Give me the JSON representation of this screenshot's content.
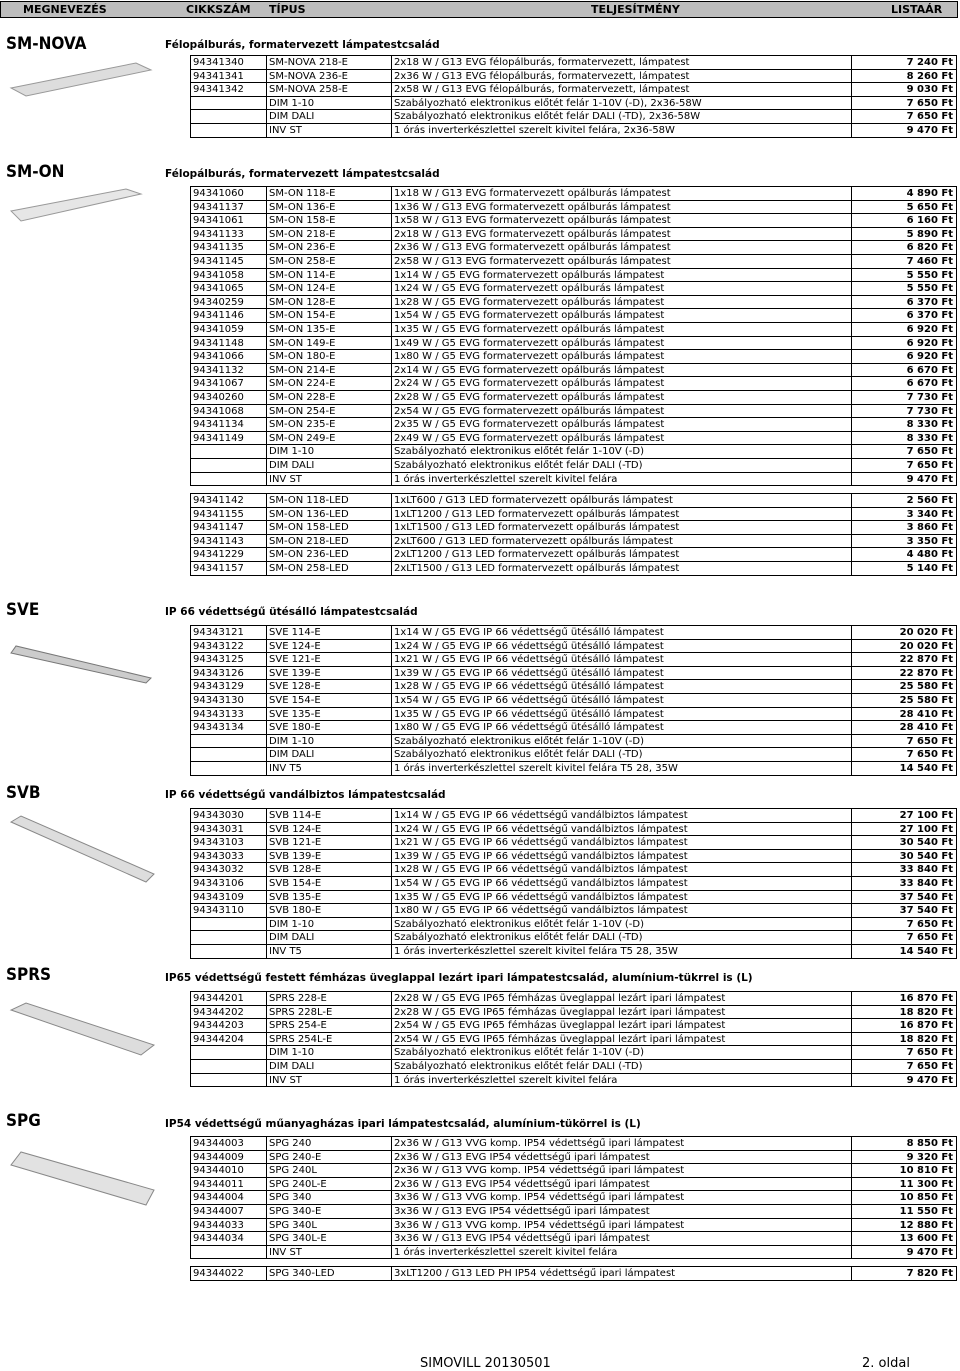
{
  "header": [
    "MEGNEVEZÉS",
    "CIKKSZÁM",
    "TÍPUS",
    "TELJESÍTMÉNY",
    "LISTAÁR"
  ],
  "footer": [
    "SIMOVILL 20130501",
    "2. oldal"
  ],
  "sections": [
    {
      "name": "SM-NOVA",
      "subtitle": "Félopálburás, formatervezett lámpatestcsalád",
      "groups": [
        [
          {
            "code": "94341340",
            "type": "SM-NOVA 218-E",
            "desc": "2x18 W / G13 EVG félopálburás, formatervezett, lámpatest",
            "price": "7 240 Ft"
          },
          {
            "code": "94341341",
            "type": "SM-NOVA 236-E",
            "desc": "2x36 W / G13 EVG félopálburás, formatervezett, lámpatest",
            "price": "8 260 Ft"
          },
          {
            "code": "94341342",
            "type": "SM-NOVA 258-E",
            "desc": "2x58 W / G13 EVG félopálburás, formatervezett, lámpatest",
            "price": "9 030 Ft"
          },
          {
            "type": "DIM 1-10",
            "desc": "Szabályozható elektronikus előtét felár 1-10V (-D), 2x36-58W",
            "price": "7 650 Ft"
          },
          {
            "type": "DIM DALI",
            "desc": "Szabályozható elektronikus előtét felár DALI (-TD), 2x36-58W",
            "price": "7 650 Ft"
          },
          {
            "type": "INV ST",
            "desc": "1 órás inverterkészlettel szerelt kivitel felára, 2x36-58W",
            "price": "9 470 Ft"
          }
        ]
      ]
    },
    {
      "name": "SM-ON",
      "subtitle": "Félopálburás, formatervezett lámpatestcsalád",
      "groups": [
        [
          {
            "code": "94341060",
            "type": "SM-ON 118-E",
            "desc": "1x18 W / G13 EVG  formatervezett opálburás lámpatest",
            "price": "4 890 Ft"
          },
          {
            "code": "94341137",
            "type": "SM-ON 136-E",
            "desc": "1x36 W / G13 EVG formatervezett opálburás lámpatest",
            "price": "5 650 Ft"
          },
          {
            "code": "94341061",
            "type": "SM-ON 158-E",
            "desc": "1x58 W / G13 EVG formatervezett opálburás lámpatest",
            "price": "6 160 Ft"
          },
          {
            "code": "94341133",
            "type": "SM-ON 218-E",
            "desc": "2x18 W / G13 EVG formatervezett opálburás lámpatest",
            "price": "5 890 Ft"
          },
          {
            "code": "94341135",
            "type": "SM-ON 236-E",
            "desc": "2x36 W / G13 EVG formatervezett opálburás lámpatest",
            "price": "6 820 Ft"
          },
          {
            "code": "94341145",
            "type": "SM-ON 258-E",
            "desc": "2x58 W / G13 EVG formatervezett opálburás lámpatest",
            "price": "7 460 Ft"
          },
          {
            "code": "94341058",
            "type": "SM-ON 114-E",
            "desc": "1x14 W / G5 EVG formatervezett opálburás lámpatest",
            "price": "5 550 Ft"
          },
          {
            "code": "94341065",
            "type": "SM-ON 124-E",
            "desc": "1x24 W / G5 EVG formatervezett opálburás lámpatest",
            "price": "5 550 Ft"
          },
          {
            "code": "94340259",
            "type": "SM-ON 128-E",
            "desc": "1x28 W / G5 EVG formatervezett opálburás lámpatest",
            "price": "6 370 Ft"
          },
          {
            "code": "94341146",
            "type": "SM-ON 154-E",
            "desc": "1x54 W / G5 EVG formatervezett opálburás lámpatest",
            "price": "6 370 Ft"
          },
          {
            "code": "94341059",
            "type": "SM-ON 135-E",
            "desc": "1x35 W / G5 EVG formatervezett opálburás lámpatest",
            "price": "6 920 Ft"
          },
          {
            "code": "94341148",
            "type": "SM-ON 149-E",
            "desc": "1x49 W / G5 EVG formatervezett opálburás lámpatest",
            "price": "6 920 Ft"
          },
          {
            "code": "94341066",
            "type": "SM-ON 180-E",
            "desc": "1x80 W / G5 EVG formatervezett opálburás lámpatest",
            "price": "6 920 Ft"
          },
          {
            "code": "94341132",
            "type": "SM-ON 214-E",
            "desc": "2x14 W / G5 EVG formatervezett opálburás lámpatest",
            "price": "6 670 Ft"
          },
          {
            "code": "94341067",
            "type": "SM-ON 224-E",
            "desc": "2x24 W / G5 EVG formatervezett opálburás lámpatest",
            "price": "6 670 Ft"
          },
          {
            "code": "94340260",
            "type": "SM-ON 228-E",
            "desc": "2x28 W / G5 EVG formatervezett opálburás lámpatest",
            "price": "7 730 Ft"
          },
          {
            "code": "94341068",
            "type": "SM-ON 254-E",
            "desc": "2x54 W / G5 EVG formatervezett opálburás lámpatest",
            "price": "7 730 Ft"
          },
          {
            "code": "94341134",
            "type": "SM-ON 235-E",
            "desc": "2x35 W / G5 EVG formatervezett opálburás lámpatest",
            "price": "8 330 Ft"
          },
          {
            "code": "94341149",
            "type": "SM-ON 249-E",
            "desc": "2x49 W / G5 EVG formatervezett opálburás lámpatest",
            "price": "8 330 Ft"
          },
          {
            "type": "DIM 1-10",
            "desc": "Szabályozható elektronikus előtét felár 1-10V (-D)",
            "price": "7 650 Ft"
          },
          {
            "type": "DIM DALI",
            "desc": "Szabályozható elektronikus előtét felár DALI (-TD)",
            "price": "7 650 Ft"
          },
          {
            "type": "INV ST",
            "desc": "1 órás inverterkészlettel szerelt kivitel felára",
            "price": "9 470 Ft"
          }
        ],
        [
          {
            "code": "94341142",
            "type": "SM-ON 118-LED",
            "desc": "1xLT600 / G13 LED formatervezett opálburás lámpatest",
            "price": "2 560 Ft"
          },
          {
            "code": "94341155",
            "type": "SM-ON 136-LED",
            "desc": "1xLT1200 / G13 LED formatervezett opálburás lámpatest",
            "price": "3 340 Ft"
          },
          {
            "code": "94341147",
            "type": "SM-ON 158-LED",
            "desc": "1xLT1500 / G13 LED formatervezett opálburás lámpatest",
            "price": "3 860 Ft"
          },
          {
            "code": "94341143",
            "type": "SM-ON 218-LED",
            "desc": "2xLT600 / G13 LED formatervezett opálburás lámpatest",
            "price": "3 350 Ft"
          },
          {
            "code": "94341229",
            "type": "SM-ON 236-LED",
            "desc": "2xLT1200 / G13 LED formatervezett opálburás lámpatest",
            "price": "4 480 Ft"
          },
          {
            "code": "94341157",
            "type": "SM-ON 258-LED",
            "desc": "2xLT1500 / G13 LED formatervezett opálburás lámpatest",
            "price": "5 140 Ft"
          }
        ]
      ]
    },
    {
      "name": "SVE",
      "subtitle": "IP 66 védettségű ütésálló lámpatestcsalád",
      "groups": [
        [
          {
            "code": "94343121",
            "type": "SVE 114-E",
            "desc": "1x14 W / G5 EVG IP 66 védettségű ütésálló lámpatest",
            "price": "20 020 Ft"
          },
          {
            "code": "94343122",
            "type": "SVE 124-E",
            "desc": "1x24 W / G5 EVG IP 66 védettségű ütésálló lámpatest",
            "price": "20 020 Ft"
          },
          {
            "code": "94343125",
            "type": "SVE 121-E",
            "desc": "1x21 W / G5 EVG IP 66 védettségű ütésálló lámpatest",
            "price": "22 870 Ft"
          },
          {
            "code": "94343126",
            "type": "SVE 139-E",
            "desc": "1x39 W / G5 EVG IP 66 védettségű ütésálló lámpatest",
            "price": "22 870 Ft"
          },
          {
            "code": "94343129",
            "type": "SVE 128-E",
            "desc": "1x28 W / G5 EVG IP 66 védettségű ütésálló lámpatest",
            "price": "25 580 Ft"
          },
          {
            "code": "94343130",
            "type": "SVE 154-E",
            "desc": "1x54 W / G5 EVG IP 66 védettségű ütésálló lámpatest",
            "price": "25 580 Ft"
          },
          {
            "code": "94343133",
            "type": "SVE 135-E",
            "desc": "1x35 W / G5 EVG IP 66 védettségű ütésálló lámpatest",
            "price": "28 410 Ft"
          },
          {
            "code": "94343134",
            "type": "SVE 180-E",
            "desc": "1x80 W / G5 EVG IP 66 védettségű ütésálló lámpatest",
            "price": "28 410 Ft"
          },
          {
            "type": "DIM 1-10",
            "desc": "Szabályozható elektronikus előtét felár 1-10V (-D)",
            "price": "7 650 Ft"
          },
          {
            "type": "DIM DALI",
            "desc": "Szabályozható elektronikus előtét felár DALI (-TD)",
            "price": "7 650 Ft"
          },
          {
            "type": "INV T5",
            "desc": "1 órás inverterkészlettel szerelt kivitel felára T5 28, 35W",
            "price": "14 540 Ft"
          }
        ]
      ]
    },
    {
      "name": "SVB",
      "subtitle": "IP 66 védettségű vandálbiztos lámpatestcsalád",
      "groups": [
        [
          {
            "code": "94343030",
            "type": "SVB 114-E",
            "desc": "1x14 W / G5 EVG IP 66 védettségű vandálbiztos lámpatest",
            "price": "27 100 Ft"
          },
          {
            "code": "94343031",
            "type": "SVB 124-E",
            "desc": "1x24 W / G5 EVG IP 66 védettségű vandálbiztos lámpatest",
            "price": "27 100 Ft"
          },
          {
            "code": "94343103",
            "type": "SVB 121-E",
            "desc": "1x21 W / G5 EVG IP 66 védettségű vandálbiztos lámpatest",
            "price": "30 540 Ft"
          },
          {
            "code": "94343033",
            "type": "SVB 139-E",
            "desc": "1x39 W / G5 EVG IP 66 védettségű vandálbiztos lámpatest",
            "price": "30 540 Ft"
          },
          {
            "code": "94343032",
            "type": "SVB 128-E",
            "desc": "1x28 W / G5 EVG IP 66 védettségű vandálbiztos lámpatest",
            "price": "33 840 Ft"
          },
          {
            "code": "94343106",
            "type": "SVB 154-E",
            "desc": "1x54 W / G5 EVG IP 66 védettségű vandálbiztos lámpatest",
            "price": "33 840 Ft"
          },
          {
            "code": "94343109",
            "type": "SVB 135-E",
            "desc": "1x35 W / G5 EVG IP 66 védettségű vandálbiztos lámpatest",
            "price": "37 540 Ft"
          },
          {
            "code": "94343110",
            "type": "SVB 180-E",
            "desc": "1x80 W / G5 EVG IP 66 védettségű vandálbiztos lámpatest",
            "price": "37 540 Ft"
          },
          {
            "type": "DIM 1-10",
            "desc": "Szabályozható elektronikus előtét felár 1-10V (-D)",
            "price": "7 650 Ft"
          },
          {
            "type": "DIM DALI",
            "desc": "Szabályozható elektronikus előtét felár DALI (-TD)",
            "price": "7 650 Ft"
          },
          {
            "type": "INV T5",
            "desc": "1 órás inverterkészlettel szerelt kivitel felára T5 28, 35W",
            "price": "14 540 Ft"
          }
        ]
      ]
    },
    {
      "name": "SPRS",
      "subtitle": "IP65 védettségű festett fémházas üveglappal lezárt ipari lámpatestcsalád, alumínium-tükrrel is (L)",
      "groups": [
        [
          {
            "code": "94344201",
            "type": "SPRS 228-E",
            "desc": "2x28 W / G5 EVG IP65 fémházas üveglappal lezárt ipari lámpatest",
            "price": "16 870 Ft"
          },
          {
            "code": "94344202",
            "type": "SPRS 228L-E",
            "desc": "2x28 W / G5 EVG IP65 fémházas üveglappal lezárt ipari lámpatest",
            "price": "18 820 Ft"
          },
          {
            "code": "94344203",
            "type": "SPRS 254-E",
            "desc": "2x54 W / G5 EVG IP65 fémházas üveglappal lezárt ipari lámpatest",
            "price": "16 870 Ft"
          },
          {
            "code": "94344204",
            "type": "SPRS 254L-E",
            "desc": "2x54 W / G5 EVG IP65 fémházas üveglappal lezárt ipari lámpatest",
            "price": "18 820 Ft"
          },
          {
            "type": "DIM 1-10",
            "desc": "Szabályozható elektronikus előtét felár 1-10V (-D)",
            "price": "7 650 Ft"
          },
          {
            "type": "DIM DALI",
            "desc": "Szabályozható elektronikus előtét felár DALI (-TD)",
            "price": "7 650 Ft"
          },
          {
            "type": "INV ST",
            "desc": "1 órás inverterkészlettel szerelt kivitel felára",
            "price": "9 470 Ft"
          }
        ]
      ]
    },
    {
      "name": "SPG",
      "subtitle": "IP54 védettségű műanyagházas ipari lámpatestcsalád, alumínium-tükörrel is (L)",
      "groups": [
        [
          {
            "code": "94344003",
            "type": "SPG 240",
            "desc": "2x36 W / G13 VVG komp. IP54 védettségű ipari lámpatest",
            "price": "8 850 Ft"
          },
          {
            "code": "94344009",
            "type": "SPG 240-E",
            "desc": "2x36 W / G13 EVG IP54 védettségű ipari lámpatest",
            "price": "9 320 Ft"
          },
          {
            "code": "94344010",
            "type": "SPG 240L",
            "desc": "2x36 W / G13 VVG komp. IP54 védettségű ipari lámpatest",
            "price": "10 810 Ft"
          },
          {
            "code": "94344011",
            "type": "SPG 240L-E",
            "desc": "2x36 W / G13 EVG IP54 védettségű ipari lámpatest",
            "price": "11 300 Ft"
          },
          {
            "code": "94344004",
            "type": "SPG 340",
            "desc": "3x36 W / G13 VVG komp. IP54 védettségű ipari lámpatest",
            "price": "10 850 Ft"
          },
          {
            "code": "94344007",
            "type": "SPG 340-E",
            "desc": "3x36 W / G13 EVG IP54 védettségű ipari lámpatest",
            "price": "11 550 Ft"
          },
          {
            "code": "94344033",
            "type": "SPG 340L",
            "desc": "3x36 W / G13 VVG komp. IP54 védettségű ipari lámpatest",
            "price": "12 880 Ft"
          },
          {
            "code": "94344034",
            "type": "SPG 340L-E",
            "desc": "3x36 W / G13 EVG IP54 védettségű ipari lámpatest",
            "price": "13 600 Ft"
          },
          {
            "type": "INV ST",
            "desc": "1 órás inverterkészlettel szerelt kivitel felára",
            "price": "9 470 Ft"
          }
        ],
        [
          {
            "code": "94344022",
            "type": "SPG 340-LED",
            "desc": "3xLT1200 / G13 LED PH IP54 védettségű ipari lámpatest",
            "price": "7 820 Ft"
          }
        ]
      ]
    }
  ]
}
